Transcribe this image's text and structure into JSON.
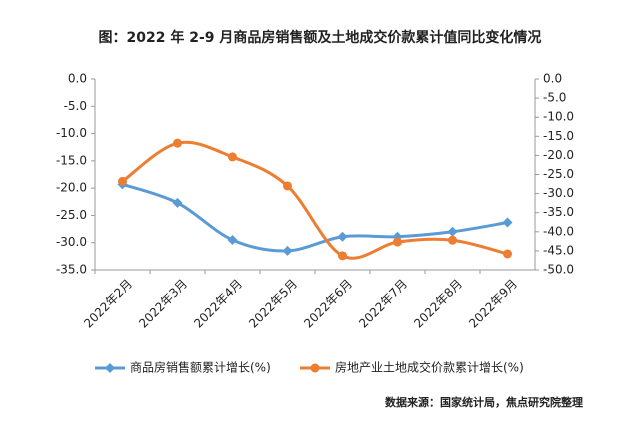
{
  "chart_data": {
    "type": "line",
    "title": "图：2022 年 2-9 月商品房销售额及土地成交价款累计值同比变化情况",
    "categories": [
      "2022年2月",
      "2022年3月",
      "2022年4月",
      "2022年5月",
      "2022年6月",
      "2022年7月",
      "2022年8月",
      "2022年9月"
    ],
    "series": [
      {
        "name": "商品房销售额累计增长(%)",
        "color": "#5b9bd5",
        "axis": "y",
        "values": [
          -19.3,
          -22.7,
          -29.5,
          -31.5,
          -28.9,
          -28.9,
          -28.0,
          -26.3
        ]
      },
      {
        "name": "房地产业土地成交价款累计增长(%)",
        "color": "#ed7d31",
        "axis": "y2",
        "values": [
          -26.8,
          -16.8,
          -20.4,
          -28.0,
          -46.3,
          -42.7,
          -42.2,
          -45.8
        ]
      }
    ],
    "ylim": [
      -35,
      0
    ],
    "yticks": [
      {
        "value": 0,
        "label": "0.0"
      },
      {
        "value": -5,
        "label": "-5.0"
      },
      {
        "value": -10,
        "label": "-10.0"
      },
      {
        "value": -15,
        "label": "-15.0"
      },
      {
        "value": -20,
        "label": "-20.0"
      },
      {
        "value": -25,
        "label": "-25.0"
      },
      {
        "value": -30,
        "label": "-30.0"
      },
      {
        "value": -35,
        "label": "-35.0"
      }
    ],
    "y2lim": [
      -50,
      0
    ],
    "y2ticks": [
      {
        "value": 0,
        "label": "0.0"
      },
      {
        "value": -5,
        "label": "-5.0"
      },
      {
        "value": -10,
        "label": "-10.0"
      },
      {
        "value": -15,
        "label": "-15.0"
      },
      {
        "value": -20,
        "label": "-20.0"
      },
      {
        "value": -25,
        "label": "-25.0"
      },
      {
        "value": -30,
        "label": "-30.0"
      },
      {
        "value": -35,
        "label": "-35.0"
      },
      {
        "value": -40,
        "label": "-40.0"
      },
      {
        "value": -45,
        "label": "-45.0"
      },
      {
        "value": -50,
        "label": "-50.0"
      }
    ],
    "source": "数据来源：国家统计局，焦点研究院整理"
  }
}
